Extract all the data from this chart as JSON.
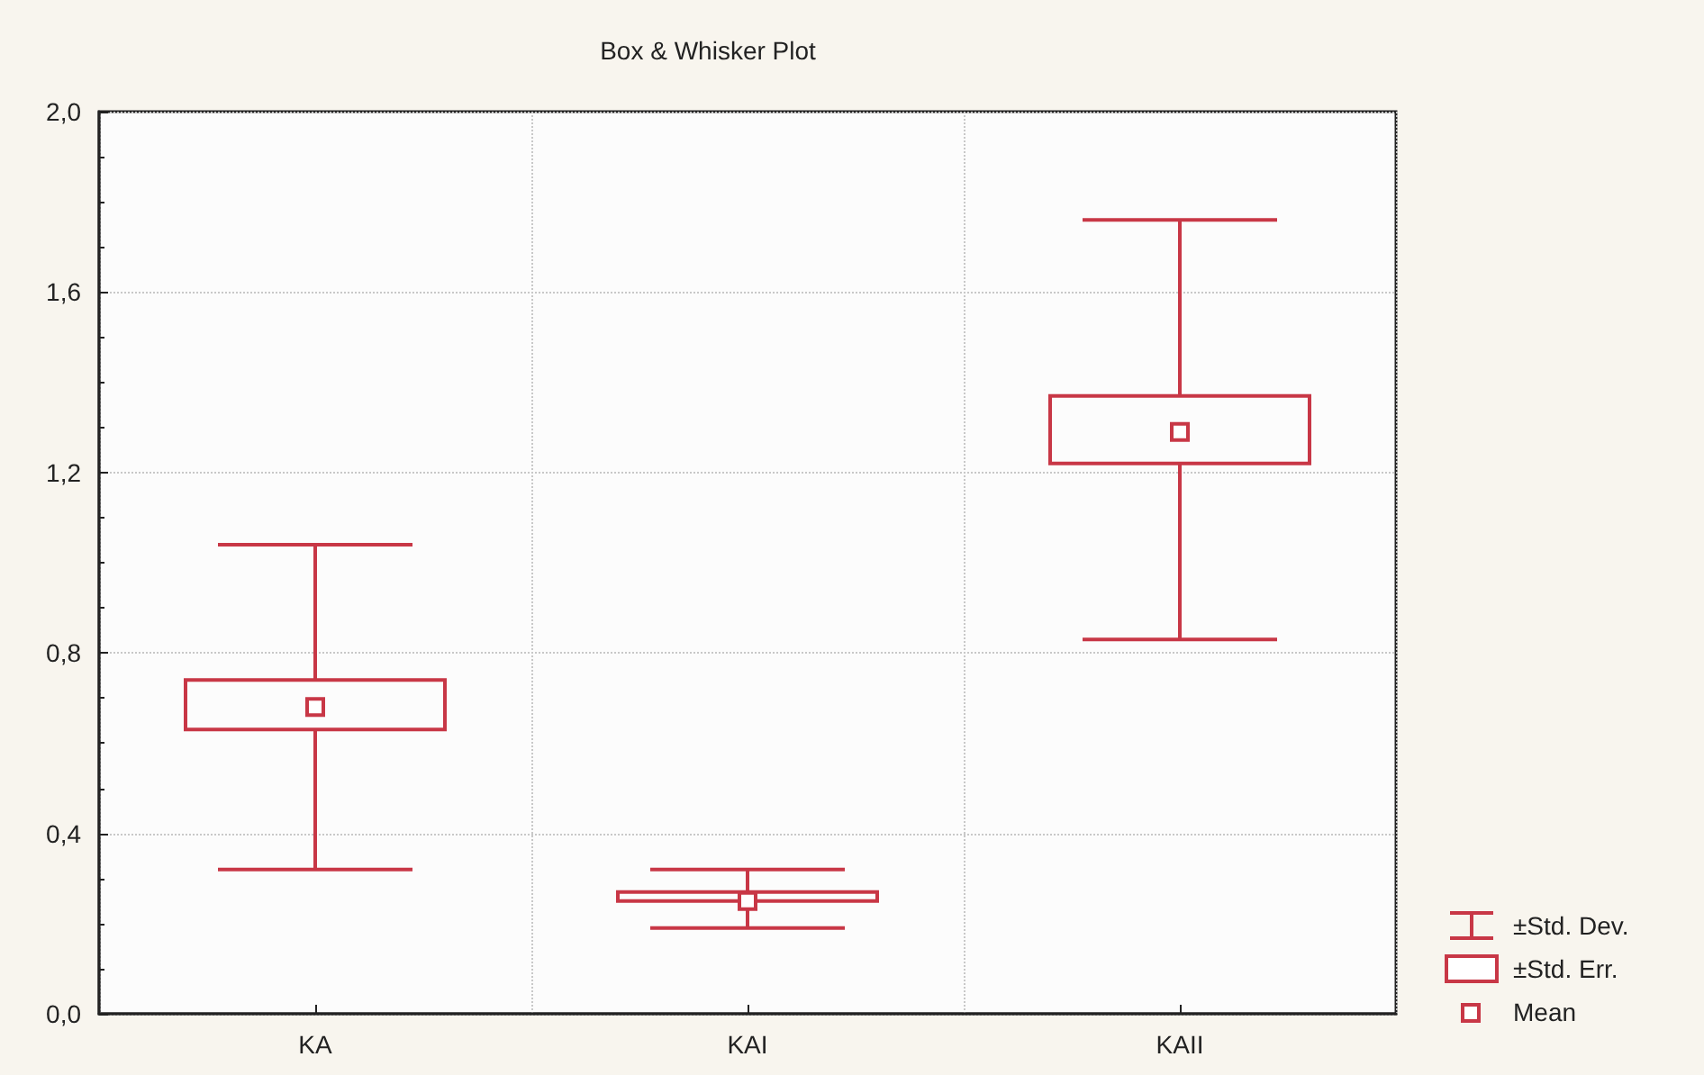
{
  "chart_data": {
    "type": "box",
    "title": "Box & Whisker Plot",
    "categories": [
      "KA",
      "KAI",
      "KAII"
    ],
    "color": "#c83746",
    "boxes": [
      {
        "low": 0.32,
        "q1": 0.63,
        "q3": 0.74,
        "high": 1.04,
        "mean": 0.68
      },
      {
        "low": 0.19,
        "q1": 0.25,
        "q3": 0.27,
        "high": 0.32,
        "mean": 0.25
      },
      {
        "low": 0.83,
        "q1": 1.22,
        "q3": 1.37,
        "high": 1.76,
        "mean": 1.29
      }
    ],
    "ylim": [
      0,
      2
    ],
    "yticks": [
      {
        "value": 0,
        "label": "0,0"
      },
      {
        "value": 0.4,
        "label": "0,4"
      },
      {
        "value": 0.8,
        "label": "0,8"
      },
      {
        "value": 1.2,
        "label": "1,2"
      },
      {
        "value": 1.6,
        "label": "1,6"
      },
      {
        "value": 2,
        "label": "2,0"
      }
    ],
    "grid": true,
    "annotations": [
      "±Std. Dev.",
      "±Std. Err.",
      "Mean"
    ]
  }
}
